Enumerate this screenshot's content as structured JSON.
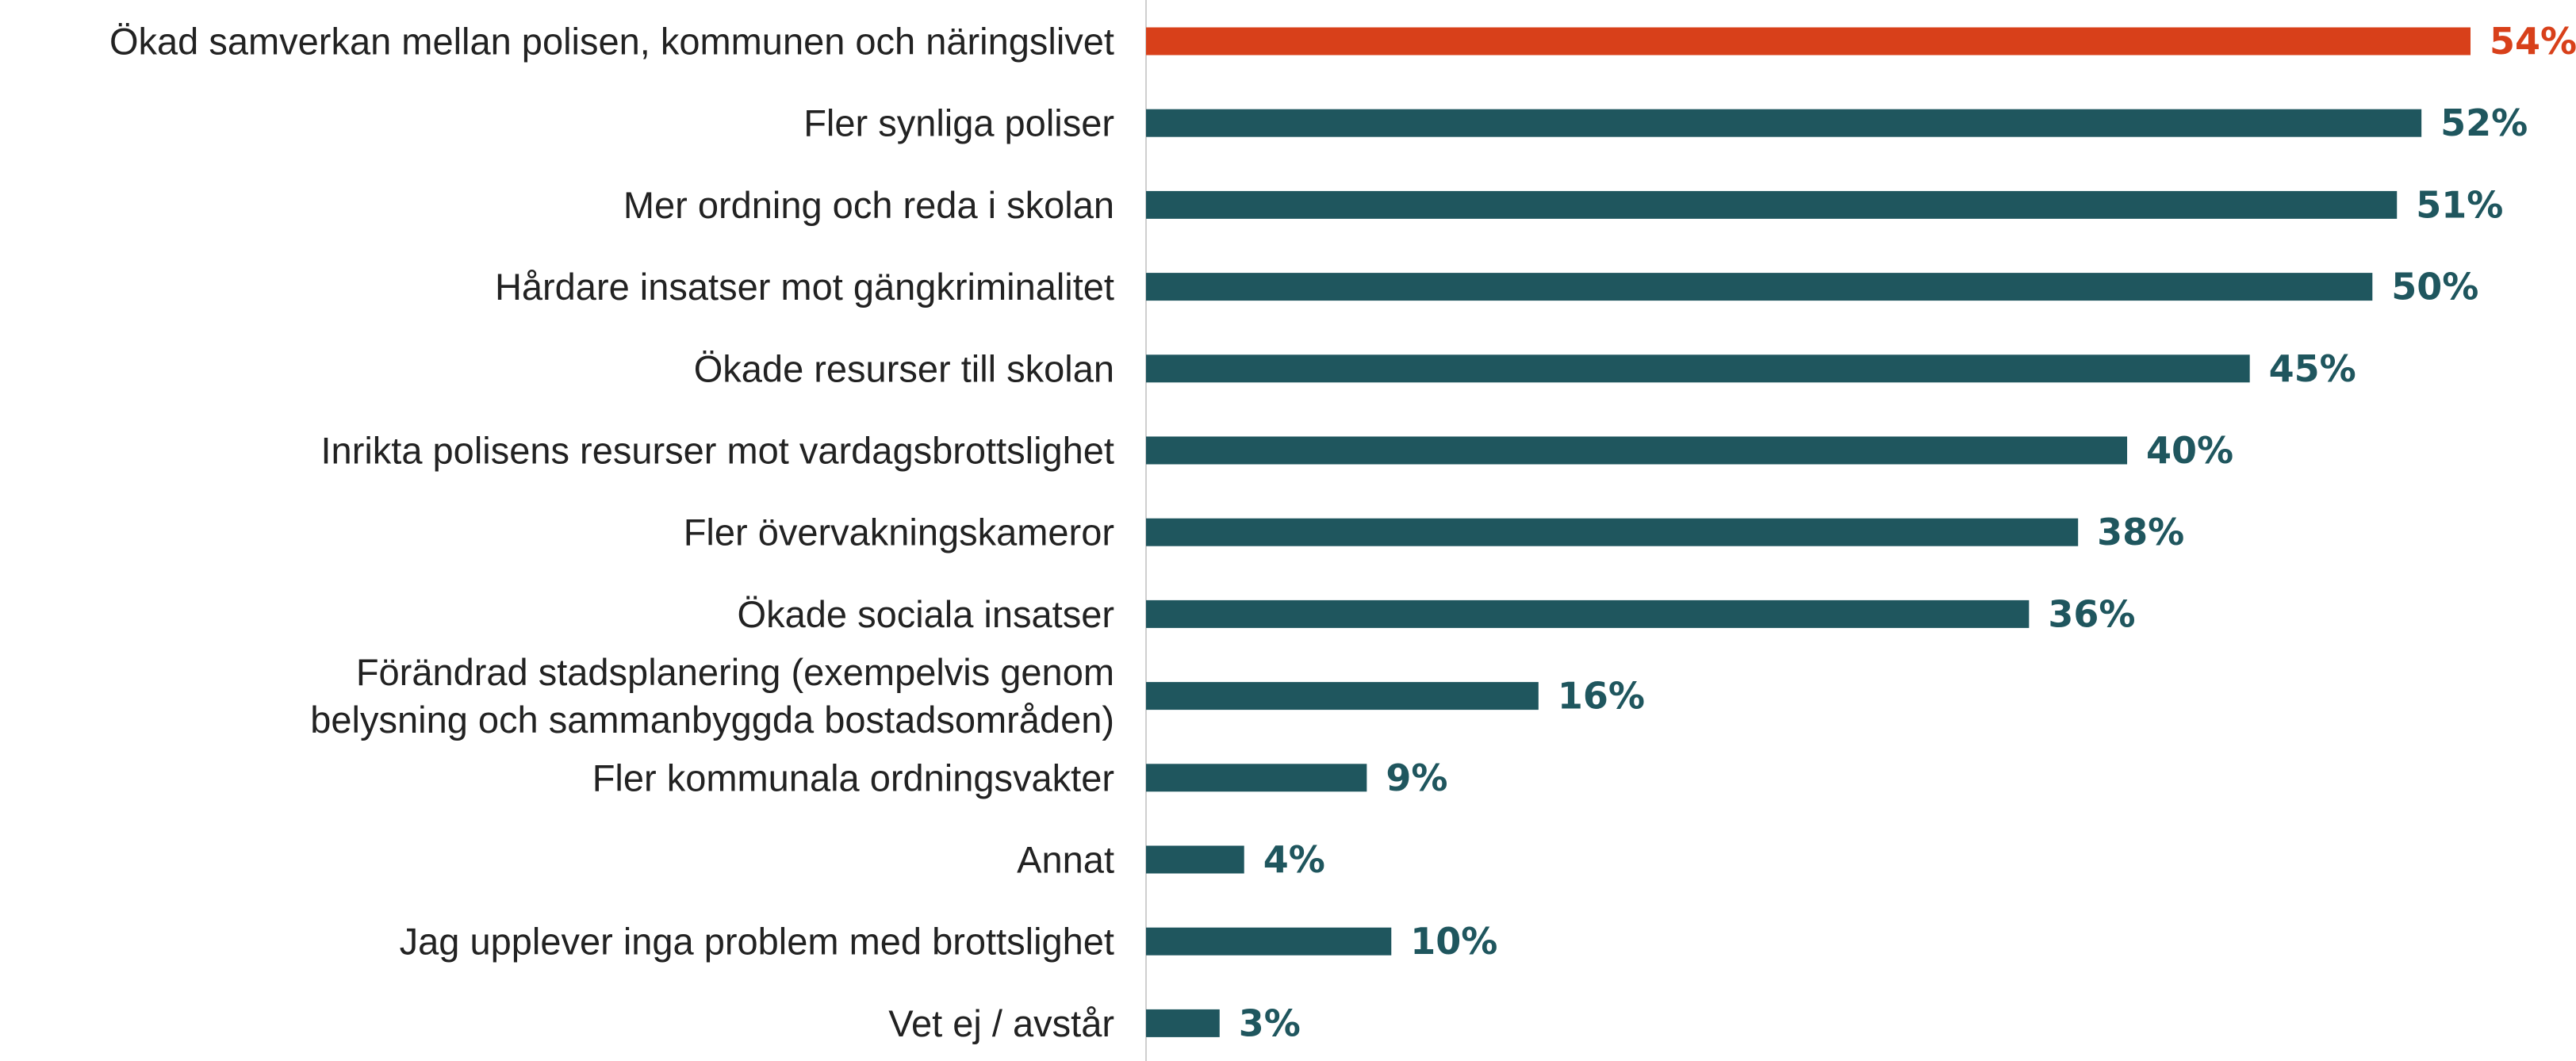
{
  "chart_data": {
    "type": "bar",
    "orientation": "horizontal",
    "title": "",
    "xlabel": "",
    "ylabel": "",
    "xlim": [
      0,
      54
    ],
    "grid": false,
    "legend": "none",
    "value_suffix": "%",
    "colors": {
      "highlight": "#D8401A",
      "default": "#1F565E",
      "axis": "#CFCFCF",
      "text": "#222222"
    },
    "categories": [
      [
        "Ökad samverkan mellan polisen, kommunen och näringslivet"
      ],
      [
        "Fler synliga poliser"
      ],
      [
        "Mer ordning och reda i skolan"
      ],
      [
        "Hårdare insatser mot gängkriminalitet"
      ],
      [
        "Ökade resurser till skolan"
      ],
      [
        "Inrikta polisens resurser mot vardagsbrottslighet"
      ],
      [
        "Fler övervakningskameror"
      ],
      [
        "Ökade sociala insatser"
      ],
      [
        "Förändrad stadsplanering (exempelvis genom",
        "belysning och sammanbyggda bostadsområden)"
      ],
      [
        "Fler kommunala ordningsvakter"
      ],
      [
        "Annat"
      ],
      [
        "Jag upplever inga problem med brottslighet"
      ],
      [
        "Vet ej / avstår"
      ]
    ],
    "values": [
      54,
      52,
      51,
      50,
      45,
      40,
      38,
      36,
      16,
      9,
      4,
      10,
      3
    ],
    "highlight_index": 0
  }
}
